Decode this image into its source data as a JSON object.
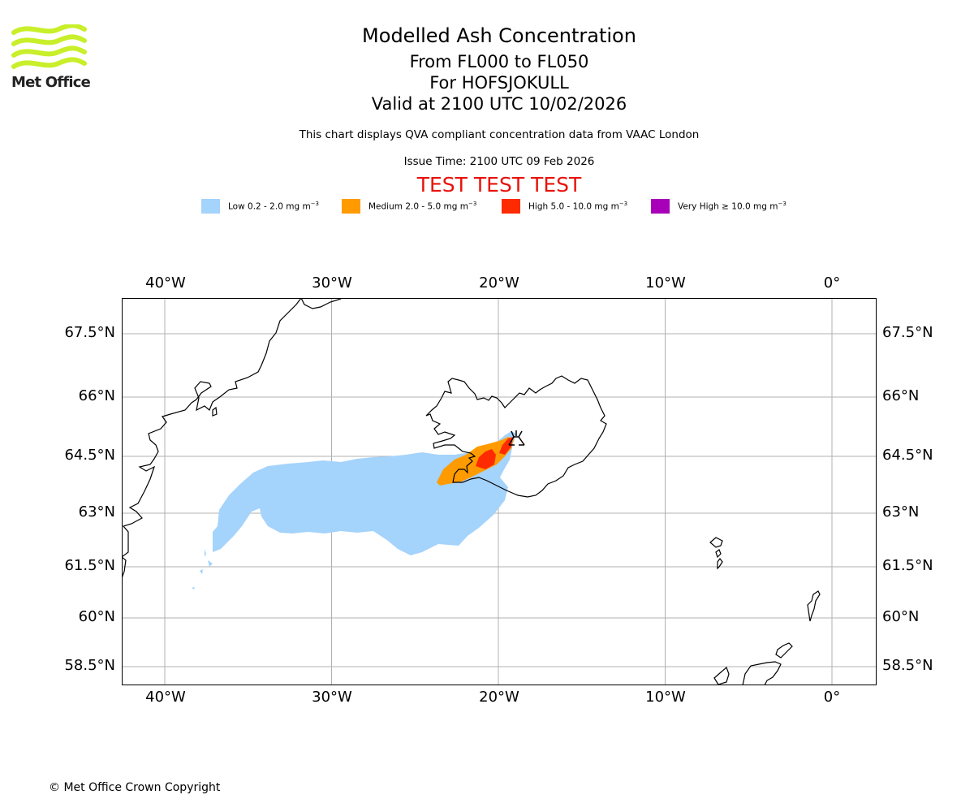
{
  "logo": {
    "text": "Met Office",
    "color": "#c8ef2a"
  },
  "title": {
    "line1": "Modelled Ash Concentration",
    "line2": "From FL000 to FL050",
    "line3": "For HOFSJOKULL",
    "line4": "Valid at 2100 UTC 10/02/2026"
  },
  "description": "This chart displays QVA compliant concentration data from VAAC London",
  "issue_time": "Issue Time: 2100 UTC 09 Feb 2026",
  "test_banner": "TEST TEST TEST",
  "legend": [
    {
      "name": "low",
      "label": "Low 0.2 - 2.0 mg m",
      "color": "#a4d3fc"
    },
    {
      "name": "medium",
      "label": "Medium 2.0 - 5.0 mg m",
      "color": "#ff9b00"
    },
    {
      "name": "high",
      "label": "High 5.0 - 10.0 mg m",
      "color": "#ff2b00"
    },
    {
      "name": "very-high",
      "label": "Very High  ≥  10.0 mg m",
      "color": "#a800b8"
    }
  ],
  "legend_unit_exponent": "−3",
  "map": {
    "lon_range": [
      -42.6,
      2.6
    ],
    "lat_range": [
      57.9,
      68.4
    ],
    "lon_ticks": [
      {
        "lon": -40,
        "label": "40°W"
      },
      {
        "lon": -30,
        "label": "30°W"
      },
      {
        "lon": -20,
        "label": "20°W"
      },
      {
        "lon": -10,
        "label": "10°W"
      },
      {
        "lon": 0,
        "label": "0°"
      }
    ],
    "lat_ticks": [
      {
        "lat": 67.5,
        "label": "67.5°N"
      },
      {
        "lat": 66,
        "label": "66°N"
      },
      {
        "lat": 64.5,
        "label": "64.5°N"
      },
      {
        "lat": 63,
        "label": "63°N"
      },
      {
        "lat": 61.5,
        "label": "61.5°N"
      },
      {
        "lat": 60,
        "label": "60°N"
      },
      {
        "lat": 58.5,
        "label": "58.5°N"
      }
    ],
    "volcano": {
      "name": "HOFSJOKULL",
      "lon": -18.8,
      "lat": 64.82
    }
  },
  "copyright": "© Met Office Crown Copyright"
}
